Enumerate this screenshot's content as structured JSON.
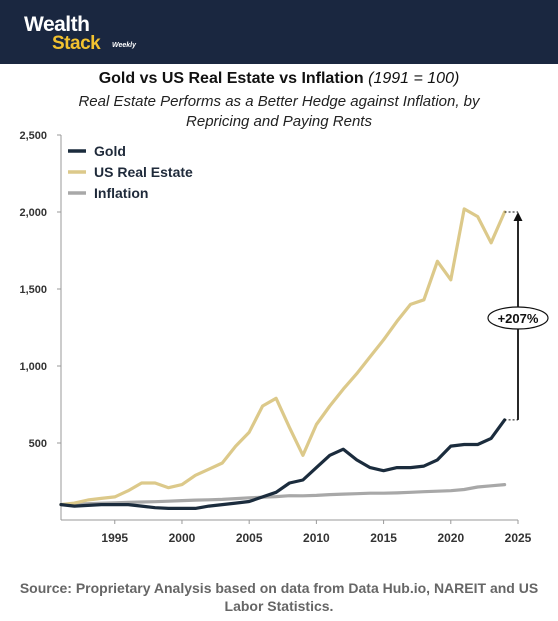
{
  "brand": {
    "line1": "Wealth",
    "line2": "Stack",
    "tag": "Weekly"
  },
  "title": {
    "main": "Gold vs US Real Estate vs Inflation",
    "note": "(1991 = 100)"
  },
  "subtitle": "Real Estate Performs as a Better Hedge against Inflation, by Repricing and Paying Rents",
  "source": "Source: Proprietary Analysis based on data from Data Hub.io, NAREIT and US Labor Statistics.",
  "colors": {
    "header_bg": "#1a2740",
    "gold": "#1b2c3d",
    "real_estate": "#dcc98a",
    "inflation": "#a8a8a8"
  },
  "chart_data": {
    "type": "line",
    "title": "Gold vs US Real Estate vs Inflation (1991 = 100)",
    "xlim": [
      1991,
      2025
    ],
    "ylim": [
      0,
      2500
    ],
    "x_ticks": [
      "1995",
      "2000",
      "2005",
      "2010",
      "2015",
      "2020",
      "2025"
    ],
    "y_ticks": [
      "500",
      "1,000",
      "1,500",
      "2,000",
      "2,500"
    ],
    "legend_position": "top-left",
    "grid": false,
    "x": [
      1991,
      1992,
      1993,
      1994,
      1995,
      1996,
      1997,
      1998,
      1999,
      2000,
      2001,
      2002,
      2003,
      2004,
      2005,
      2006,
      2007,
      2008,
      2009,
      2010,
      2011,
      2012,
      2013,
      2014,
      2015,
      2016,
      2017,
      2018,
      2019,
      2020,
      2021,
      2022,
      2023,
      2024
    ],
    "series": [
      {
        "name": "Gold",
        "color": "#1b2c3d",
        "values": [
          100,
          90,
          95,
          100,
          100,
          100,
          90,
          80,
          75,
          75,
          75,
          90,
          100,
          110,
          120,
          150,
          180,
          240,
          260,
          340,
          420,
          460,
          390,
          340,
          320,
          340,
          340,
          350,
          390,
          480,
          490,
          490,
          530,
          650
        ]
      },
      {
        "name": "US Real Estate",
        "color": "#dcc98a",
        "values": [
          100,
          110,
          130,
          140,
          150,
          190,
          240,
          240,
          210,
          230,
          290,
          330,
          370,
          480,
          570,
          740,
          790,
          600,
          420,
          620,
          740,
          850,
          950,
          1060,
          1170,
          1290,
          1400,
          1430,
          1680,
          1560,
          2020,
          1970,
          1800,
          2000
        ]
      },
      {
        "name": "Inflation",
        "color": "#a8a8a8",
        "values": [
          100,
          103,
          106,
          109,
          112,
          115,
          117,
          119,
          122,
          126,
          129,
          131,
          134,
          139,
          144,
          148,
          152,
          158,
          157,
          160,
          165,
          168,
          171,
          174,
          174,
          176,
          180,
          184,
          187,
          190,
          198,
          214,
          222,
          230
        ]
      }
    ],
    "annotation": {
      "label": "+207%",
      "from_value": 650,
      "to_value": 2000
    }
  }
}
